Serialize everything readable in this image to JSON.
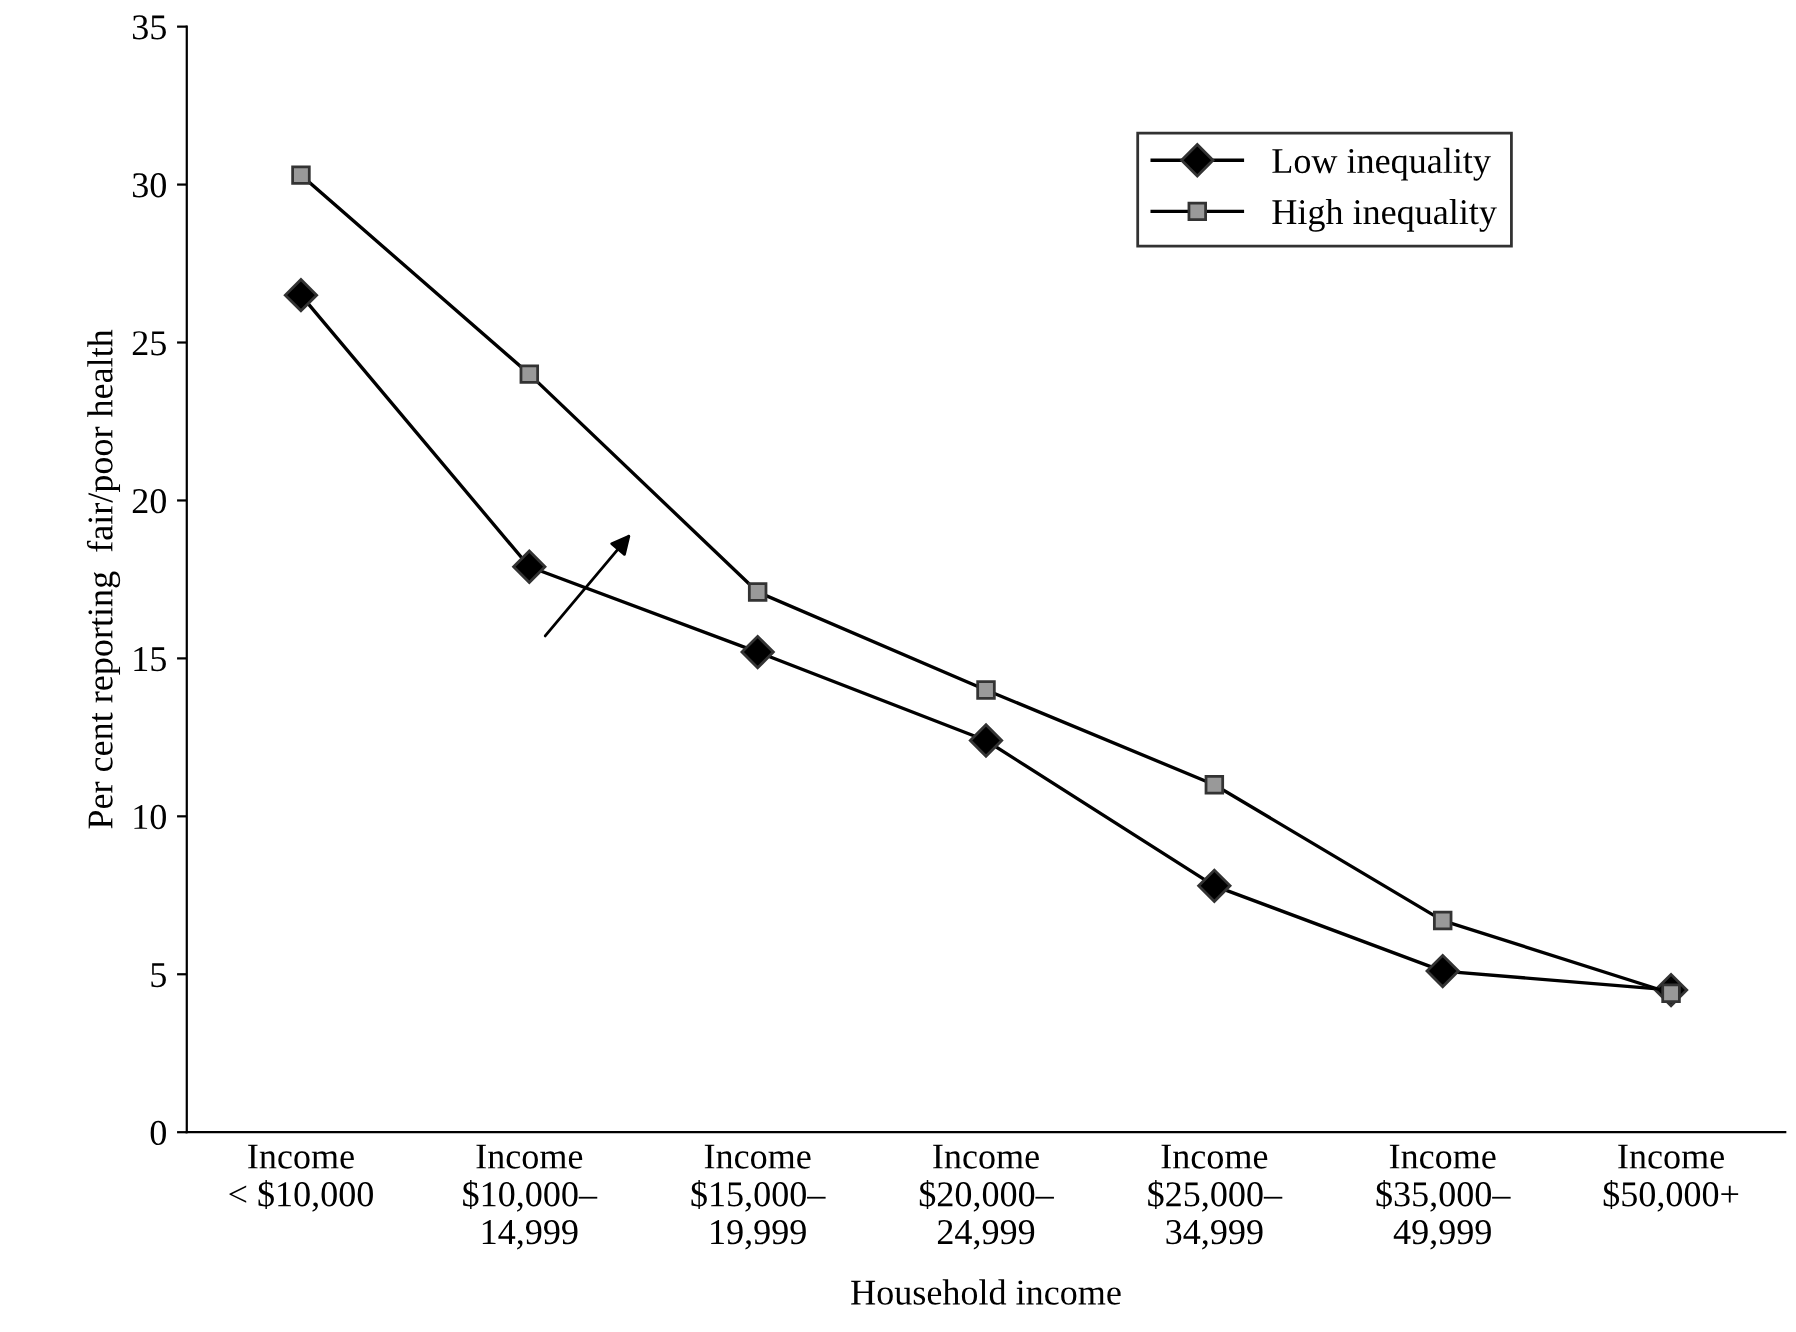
{
  "chart_data": {
    "type": "line",
    "xlabel": "Household income",
    "ylabel": "Per cent reporting  fair/poor health",
    "categories": [
      "Income\n< $10,000",
      "Income\n$10,000–\n14,999",
      "Income\n$15,000–\n19,999",
      "Income\n$20,000–\n24,999",
      "Income\n$25,000–\n34,999",
      "Income\n$35,000–\n49,999",
      "Income\n$50,000+"
    ],
    "series": [
      {
        "name": "Low inequality",
        "color": "#000000",
        "marker": "diamond",
        "values": [
          26.5,
          17.9,
          15.2,
          12.4,
          7.8,
          5.1,
          4.5
        ]
      },
      {
        "name": "High inequality",
        "color": "#999999",
        "marker": "square",
        "values": [
          30.3,
          24.0,
          17.1,
          14.0,
          11.0,
          6.7,
          4.4
        ]
      }
    ],
    "ylim": [
      0,
      35
    ],
    "yticks": [
      0,
      5,
      10,
      15,
      20,
      25,
      30,
      35
    ],
    "grid": false,
    "legend": "top right",
    "line_style": "solid"
  }
}
